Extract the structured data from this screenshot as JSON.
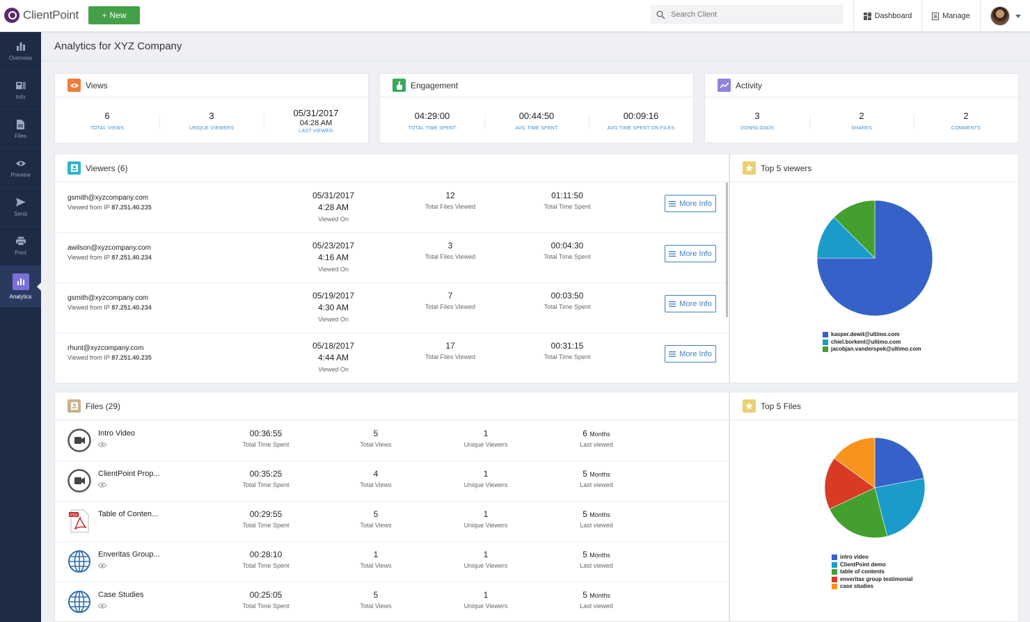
{
  "app": {
    "logo_text": "ClientPoint",
    "new_label": "New"
  },
  "search": {
    "placeholder": "Search Client"
  },
  "nav": {
    "dashboard": "Dashboard",
    "manage": "Manage"
  },
  "sidebar": {
    "items": [
      {
        "label": "Overview",
        "icon": "bar-chart-icon"
      },
      {
        "label": "Info",
        "icon": "info-card-icon"
      },
      {
        "label": "Files",
        "icon": "file-icon"
      },
      {
        "label": "Preview",
        "icon": "eye-icon"
      },
      {
        "label": "Send",
        "icon": "send-icon"
      },
      {
        "label": "Print",
        "icon": "printer-icon"
      },
      {
        "label": "Analytics",
        "icon": "analytics-icon",
        "active": true
      }
    ]
  },
  "page": {
    "title": "Analytics for XYZ Company"
  },
  "cards": {
    "views": {
      "title": "Views",
      "color": "#ef7d3c",
      "total_views": "6",
      "total_views_label": "TOTAL VIEWS",
      "unique_viewers": "3",
      "unique_viewers_label": "UNIQUE VIEWERS",
      "last_viewed_date": "05/31/2017",
      "last_viewed_time": "04:28 AM",
      "last_viewed_label": "LAST VIEWED"
    },
    "engagement": {
      "title": "Engagement",
      "color": "#3aaa5b",
      "total_time": "04:29:00",
      "total_time_label": "TOTAL TIME SPENT",
      "avg_time": "00:44:50",
      "avg_time_label": "AVG TIME SPENT",
      "avg_files": "00:09:16",
      "avg_files_label": "AVG TIME SPENT ON FILES"
    },
    "activity": {
      "title": "Activity",
      "color": "#8f83e0",
      "downloads": "3",
      "downloads_label": "DOWNLOADS",
      "shares": "2",
      "shares_label": "SHARES",
      "comments": "2",
      "comments_label": "COMMENTS"
    }
  },
  "viewers": {
    "title": "Viewers (6)",
    "viewed_from_label": "Viewed from IP",
    "viewed_on_label": "Viewed On",
    "files_label": "Total Files Viewed",
    "time_label": "Total Time Spent",
    "more_label": "More Info",
    "rows": [
      {
        "email": "gsmith@xyzcompany.com",
        "ip": "87.251.40.235",
        "date": "05/31/2017",
        "time": "4:28 AM",
        "files": "12",
        "spent": "01:11:50"
      },
      {
        "email": "awilson@xyzcompany.com",
        "ip": "87.251.40.234",
        "date": "05/23/2017",
        "time": "4:16 AM",
        "files": "3",
        "spent": "00:04:30"
      },
      {
        "email": "gsmith@xyzcompany.com",
        "ip": "87.251.40.234",
        "date": "05/19/2017",
        "time": "4:30 AM",
        "files": "7",
        "spent": "00:03:50"
      },
      {
        "email": "rhunt@xyzcompany.com",
        "ip": "87.251.40.235",
        "date": "05/18/2017",
        "time": "4:44 AM",
        "files": "17",
        "spent": "00:31:15"
      }
    ]
  },
  "top_viewers": {
    "title": "Top 5 viewers"
  },
  "files": {
    "title": "Files (29)",
    "time_label": "Total Time Spent",
    "views_label": "Total Views",
    "unique_label": "Unique Viewers",
    "months_label": "Months",
    "last_label": "Last viewed",
    "rows": [
      {
        "name": "Intro Video",
        "type": "video",
        "time": "00:36:55",
        "views": "5",
        "unique": "1",
        "months": "6"
      },
      {
        "name": "ClientPoint Prop...",
        "type": "video",
        "time": "00:35:25",
        "views": "4",
        "unique": "1",
        "months": "5"
      },
      {
        "name": "Table of Conten...",
        "type": "pdf",
        "time": "00:29:55",
        "views": "5",
        "unique": "1",
        "months": "5"
      },
      {
        "name": "Enveritas Group...",
        "type": "web",
        "time": "00:28:10",
        "views": "1",
        "unique": "1",
        "months": "5"
      },
      {
        "name": "Case Studies",
        "type": "web",
        "time": "00:25:05",
        "views": "5",
        "unique": "1",
        "months": "5"
      }
    ]
  },
  "top_files": {
    "title": "Top 5 Files"
  },
  "chart_data": [
    {
      "type": "pie",
      "series": [
        {
          "values": [
            75,
            12.5,
            12.5
          ]
        }
      ],
      "categories": [
        "kasper.dewit@ultimo.com",
        "chiel.borkent@ultimo.com",
        "jacobjan.vanderspek@ultimo.com"
      ],
      "colors": [
        "#3561c9",
        "#1a9bc9",
        "#43a02f"
      ],
      "legend": "bottom"
    },
    {
      "type": "pie",
      "series": [
        {
          "values": [
            22,
            24,
            22,
            17,
            15
          ]
        }
      ],
      "categories": [
        "intro video",
        "ClientPoint demo",
        "table of contents",
        "enveritas group testimonial",
        "case studies"
      ],
      "colors": [
        "#3561c9",
        "#1a9bc9",
        "#43a02f",
        "#d93a22",
        "#f7941e"
      ],
      "legend": "bottom"
    }
  ]
}
